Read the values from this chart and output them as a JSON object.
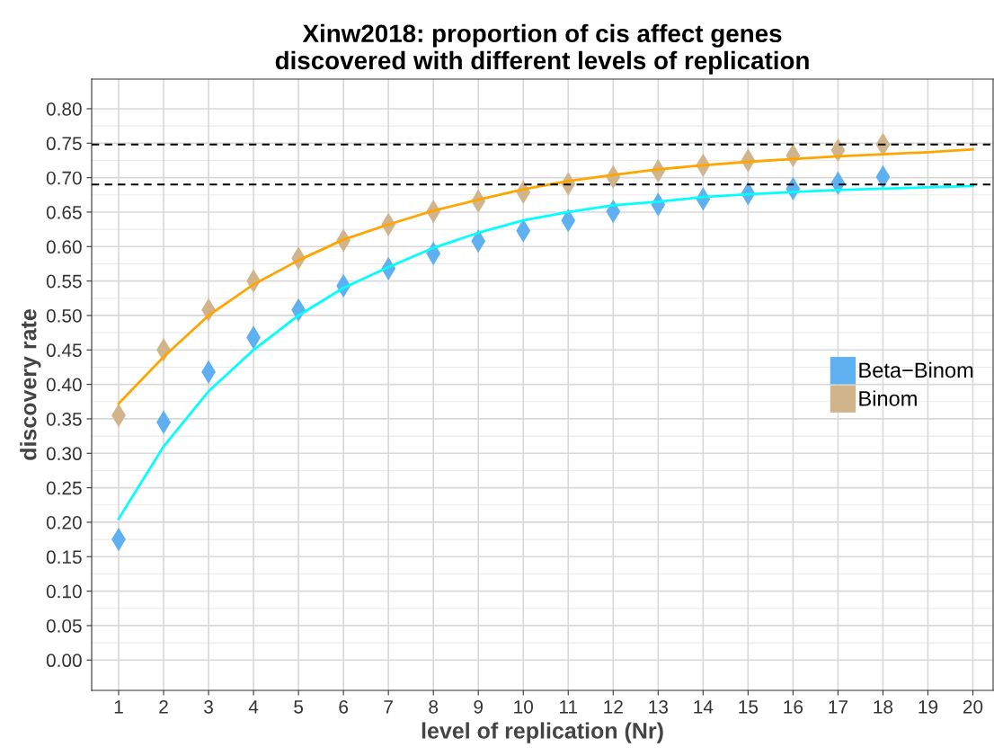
{
  "chart_data": {
    "type": "scatter",
    "title": "Xinw2018: proportion of cis affect genes\ndiscovered with different levels of replication",
    "xlabel": "level of replication (Nr)",
    "ylabel": "discovery rate",
    "x": [
      1,
      2,
      3,
      4,
      5,
      6,
      7,
      8,
      9,
      10,
      11,
      12,
      13,
      14,
      15,
      16,
      17,
      18
    ],
    "series": [
      {
        "name": "Beta−Binom",
        "color": "#5fb0f0",
        "marker": "diamond",
        "values": [
          0.175,
          0.345,
          0.418,
          0.468,
          0.508,
          0.543,
          0.568,
          0.59,
          0.608,
          0.623,
          0.638,
          0.651,
          0.661,
          0.669,
          0.677,
          0.684,
          0.692,
          0.701
        ]
      },
      {
        "name": "Binom",
        "color": "#d2b48c",
        "marker": "diamond",
        "values": [
          0.355,
          0.45,
          0.508,
          0.55,
          0.583,
          0.609,
          0.632,
          0.651,
          0.666,
          0.679,
          0.691,
          0.701,
          0.71,
          0.718,
          0.725,
          0.732,
          0.74,
          0.748
        ]
      },
      {
        "type": "line",
        "color": "#00ffff",
        "x": [
          1,
          2,
          3,
          4,
          5,
          6,
          7,
          8,
          9,
          10,
          11,
          12,
          13,
          14,
          15,
          16,
          17,
          18,
          19,
          20
        ],
        "values": [
          0.205,
          0.31,
          0.39,
          0.45,
          0.5,
          0.54,
          0.57,
          0.598,
          0.62,
          0.638,
          0.65,
          0.66,
          0.665,
          0.672,
          0.676,
          0.679,
          0.682,
          0.684,
          0.686,
          0.688
        ]
      },
      {
        "type": "line",
        "color": "#ffa500",
        "x": [
          1,
          2,
          3,
          4,
          5,
          6,
          7,
          8,
          9,
          10,
          11,
          12,
          13,
          14,
          15,
          16,
          17,
          18,
          19,
          20
        ],
        "values": [
          0.372,
          0.44,
          0.5,
          0.545,
          0.58,
          0.61,
          0.632,
          0.652,
          0.668,
          0.683,
          0.695,
          0.704,
          0.712,
          0.718,
          0.723,
          0.727,
          0.731,
          0.734,
          0.737,
          0.741
        ]
      }
    ],
    "ref_lines": [
      {
        "axis": "y",
        "value": 0.748,
        "color": "#000000",
        "line_style": "dashed"
      },
      {
        "axis": "y",
        "value": 0.69,
        "color": "#000000",
        "line_style": "dashed"
      }
    ],
    "xlim": [
      0.4,
      20.45
    ],
    "xticks": [
      1,
      2,
      3,
      4,
      5,
      6,
      7,
      8,
      9,
      10,
      11,
      12,
      13,
      14,
      15,
      16,
      17,
      18,
      19,
      20
    ],
    "ylim": [
      -0.044,
      0.843
    ],
    "yticks": [
      {
        "value": 0,
        "label": "0.00"
      },
      {
        "value": 0.05,
        "label": "0.05"
      },
      {
        "value": 0.1,
        "label": "0.10"
      },
      {
        "value": 0.15,
        "label": "0.15"
      },
      {
        "value": 0.2,
        "label": "0.20"
      },
      {
        "value": 0.25,
        "label": "0.25"
      },
      {
        "value": 0.3,
        "label": "0.30"
      },
      {
        "value": 0.35,
        "label": "0.35"
      },
      {
        "value": 0.4,
        "label": "0.40"
      },
      {
        "value": 0.45,
        "label": "0.45"
      },
      {
        "value": 0.5,
        "label": "0.50"
      },
      {
        "value": 0.55,
        "label": "0.55"
      },
      {
        "value": 0.6,
        "label": "0.60"
      },
      {
        "value": 0.65,
        "label": "0.65"
      },
      {
        "value": 0.7,
        "label": "0.70"
      },
      {
        "value": 0.75,
        "label": "0.75"
      },
      {
        "value": 0.8,
        "label": "0.80"
      }
    ],
    "grid": true,
    "legend": "right"
  }
}
